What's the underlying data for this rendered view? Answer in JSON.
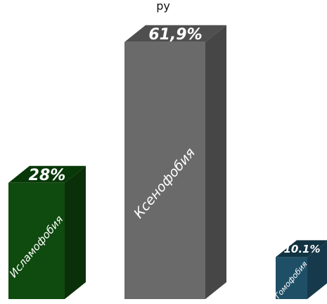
{
  "chart_data": {
    "type": "bar",
    "title_fragment": "ру",
    "categories": [
      "Исламофобия",
      "Ксенофобия",
      "Гомофобия"
    ],
    "values": [
      28,
      61.9,
      10.1
    ],
    "value_labels": [
      "28%",
      "61,9%",
      "10.1%"
    ],
    "ylim": [
      0,
      70
    ],
    "grid": false,
    "legend": "none",
    "colors": {
      "Исламофобия": {
        "front": "#0f4a0f",
        "side": "#0a300a",
        "top": "#083808"
      },
      "Ксенофобия": {
        "front": "#6a6a6a",
        "side": "#464646",
        "top": "#4f4f4f"
      },
      "Гомофобия": {
        "front": "#1f4f66",
        "side": "#163a4b",
        "top": "#123342"
      }
    }
  }
}
